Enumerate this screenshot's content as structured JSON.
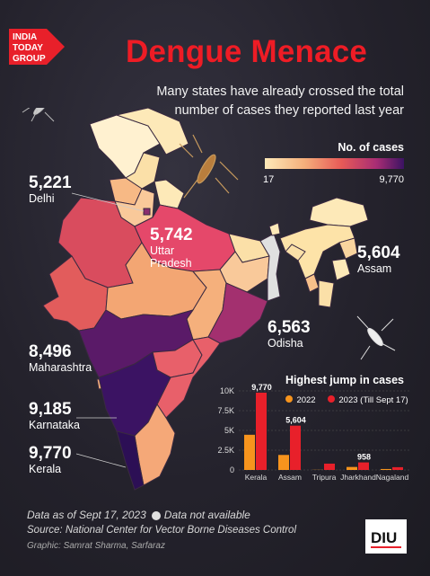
{
  "brand": {
    "logo_lines": [
      "INDIA",
      "TODAY",
      "GROUP"
    ],
    "diu_label": "DIU"
  },
  "header": {
    "title": "Dengue Menace",
    "subtitle_line1": "Many states have already crossed the total",
    "subtitle_line2": "number of cases they reported last year"
  },
  "legend": {
    "title": "No. of cases",
    "min": "17",
    "max": "9,770",
    "colors": [
      "#fde9b8",
      "#f5b07c",
      "#e75a57",
      "#a92d74",
      "#3b1363"
    ]
  },
  "callouts": [
    {
      "value": "5,221",
      "name": "Delhi"
    },
    {
      "value": "5,742",
      "name_line1": "Uttar",
      "name_line2": "Pradesh"
    },
    {
      "value": "5,604",
      "name": "Assam"
    },
    {
      "value": "6,563",
      "name": "Odisha"
    },
    {
      "value": "8,496",
      "name": "Maharashtra"
    },
    {
      "value": "9,185",
      "name": "Karnataka"
    },
    {
      "value": "9,770",
      "name": "Kerala"
    }
  ],
  "chart_data": {
    "type": "bar",
    "title": "Highest jump in cases",
    "categories": [
      "Kerala",
      "Assam",
      "Tripura",
      "Jharkhand",
      "Nagaland"
    ],
    "series": [
      {
        "name": "2022",
        "color": "#f7941d",
        "values": [
          4450,
          1900,
          20,
          380,
          120
        ]
      },
      {
        "name": "2023 (Till Sept 17)",
        "color": "#e8202a",
        "values": [
          9770,
          5604,
          800,
          958,
          350
        ]
      }
    ],
    "data_labels": {
      "Kerala": "9,770",
      "Assam": "5,604",
      "Jharkhand": "958"
    },
    "yticks": [
      "0",
      "2.5K",
      "5K",
      "7.5K",
      "10K"
    ],
    "ylim": [
      0,
      10000
    ]
  },
  "footer": {
    "data_as_of": "Data as of Sept 17, 2023",
    "not_available": "Data not available",
    "source": "Source: National Center for Vector Borne Diseases Control",
    "graphic": "Graphic: Samrat Sharma, Sarfaraz"
  }
}
